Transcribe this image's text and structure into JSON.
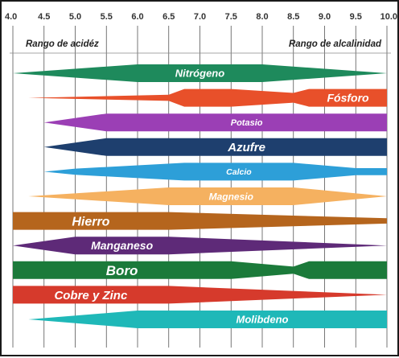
{
  "chart_data": {
    "type": "area",
    "title": "",
    "x_ticks": [
      "4.0",
      "4.5",
      "5.0",
      "5.5",
      "6.0",
      "6.5",
      "7.0",
      "7.5",
      "8.0",
      "8.5",
      "9.0",
      "9.5",
      "10.0"
    ],
    "xlim": [
      4.0,
      10.0
    ],
    "grid": true,
    "header_left": "Rango de acidéz",
    "header_right": "Rango de alcalinidad",
    "series": [
      {
        "name": "Nitrógeno",
        "color": "#1e8a5c",
        "profile": [
          [
            4.0,
            0
          ],
          [
            6.0,
            1
          ],
          [
            8.0,
            1
          ],
          [
            10.0,
            0
          ]
        ]
      },
      {
        "name": "Fósforo",
        "color": "#e8502a",
        "profile": [
          [
            4.25,
            0
          ],
          [
            6.5,
            0.35
          ],
          [
            6.75,
            1
          ],
          [
            7.5,
            1
          ],
          [
            8.5,
            0.55
          ],
          [
            8.75,
            1
          ],
          [
            10.0,
            1
          ]
        ]
      },
      {
        "name": "Potasio",
        "color": "#9b3fb5",
        "profile": [
          [
            4.5,
            0
          ],
          [
            5.5,
            1
          ],
          [
            10.0,
            1
          ]
        ]
      },
      {
        "name": "Azufre",
        "color": "#1e3f6e",
        "profile": [
          [
            4.5,
            0
          ],
          [
            5.5,
            1
          ],
          [
            10.0,
            1
          ]
        ]
      },
      {
        "name": "Calcio",
        "color": "#2d9fd8",
        "profile": [
          [
            4.5,
            0
          ],
          [
            5.0,
            0.35
          ],
          [
            6.75,
            1
          ],
          [
            8.5,
            1
          ],
          [
            9.5,
            0.4
          ],
          [
            10.0,
            0.4
          ]
        ]
      },
      {
        "name": "Magnesio",
        "color": "#f5b160",
        "profile": [
          [
            4.25,
            0
          ],
          [
            6.5,
            1
          ],
          [
            8.5,
            1
          ],
          [
            10.0,
            0
          ]
        ]
      },
      {
        "name": "Hierro",
        "color": "#b5651d",
        "profile": [
          [
            4.0,
            1
          ],
          [
            6.5,
            1
          ],
          [
            10.0,
            0.3
          ]
        ]
      },
      {
        "name": "Manganeso",
        "color": "#5e2a78",
        "profile": [
          [
            4.0,
            0
          ],
          [
            5.0,
            1
          ],
          [
            6.5,
            1
          ],
          [
            10.0,
            0
          ]
        ]
      },
      {
        "name": "Boro",
        "color": "#1b7a3a",
        "profile": [
          [
            4.0,
            1
          ],
          [
            7.5,
            1
          ],
          [
            8.5,
            0.4
          ],
          [
            8.75,
            1
          ],
          [
            10.0,
            1
          ]
        ]
      },
      {
        "name": "Cobre y Zinc",
        "color": "#d63a2c",
        "profile": [
          [
            4.0,
            1
          ],
          [
            6.5,
            1
          ],
          [
            10.0,
            0
          ]
        ]
      },
      {
        "name": "Molibdeno",
        "color": "#1fb8b8",
        "profile": [
          [
            4.25,
            0
          ],
          [
            6.0,
            1
          ],
          [
            10.0,
            1
          ]
        ]
      }
    ]
  }
}
